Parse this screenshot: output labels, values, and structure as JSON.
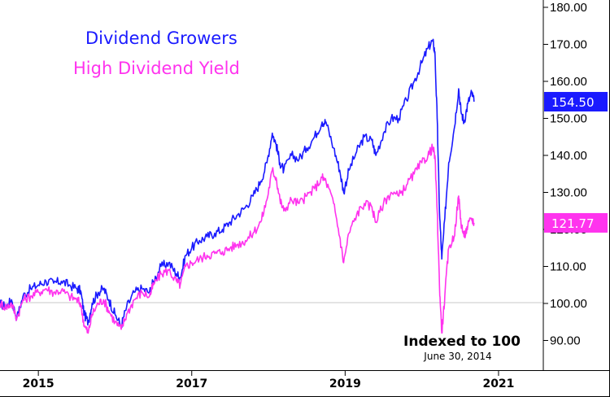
{
  "chart_data": {
    "type": "line",
    "title": "",
    "xlabel": "",
    "ylabel": "",
    "x_range": [
      2014.5,
      2020.72
    ],
    "ylim": [
      86,
      182
    ],
    "y_ticks": [
      "180.00",
      "170.00",
      "160.00",
      "150.00",
      "140.00",
      "130.00",
      "120.00",
      "110.00",
      "100.00",
      "90.00"
    ],
    "x_ticks": [
      {
        "label": "2015",
        "x": 2015
      },
      {
        "label": "2017",
        "x": 2017
      },
      {
        "label": "2019",
        "x": 2019
      },
      {
        "label": "2021",
        "x": 2021
      }
    ],
    "baseline": 100,
    "legend_position": "top-left",
    "series": [
      {
        "name": "Dividend Growers",
        "color": "#1a1aff",
        "last_value_label": "154.50",
        "points": [
          [
            2014.5,
            100
          ],
          [
            2014.58,
            99
          ],
          [
            2014.65,
            101
          ],
          [
            2014.72,
            96
          ],
          [
            2014.8,
            102
          ],
          [
            2014.9,
            104
          ],
          [
            2015.0,
            105
          ],
          [
            2015.1,
            106
          ],
          [
            2015.2,
            105.5
          ],
          [
            2015.3,
            106
          ],
          [
            2015.4,
            105
          ],
          [
            2015.5,
            104
          ],
          [
            2015.55,
            103.5
          ],
          [
            2015.6,
            97
          ],
          [
            2015.65,
            95
          ],
          [
            2015.7,
            100
          ],
          [
            2015.78,
            103
          ],
          [
            2015.85,
            104
          ],
          [
            2015.92,
            101
          ],
          [
            2016.0,
            97
          ],
          [
            2016.08,
            94
          ],
          [
            2016.15,
            99
          ],
          [
            2016.25,
            103
          ],
          [
            2016.35,
            104
          ],
          [
            2016.45,
            103
          ],
          [
            2016.5,
            106
          ],
          [
            2016.6,
            110
          ],
          [
            2016.7,
            111
          ],
          [
            2016.8,
            108
          ],
          [
            2016.85,
            107
          ],
          [
            2016.92,
            113
          ],
          [
            2017.0,
            115
          ],
          [
            2017.1,
            117
          ],
          [
            2017.2,
            118
          ],
          [
            2017.3,
            119
          ],
          [
            2017.4,
            120
          ],
          [
            2017.5,
            122
          ],
          [
            2017.6,
            124
          ],
          [
            2017.7,
            126
          ],
          [
            2017.8,
            129
          ],
          [
            2017.9,
            133
          ],
          [
            2017.98,
            138
          ],
          [
            2018.05,
            146
          ],
          [
            2018.1,
            143
          ],
          [
            2018.15,
            138
          ],
          [
            2018.2,
            136
          ],
          [
            2018.3,
            140
          ],
          [
            2018.4,
            139
          ],
          [
            2018.5,
            142
          ],
          [
            2018.6,
            145
          ],
          [
            2018.7,
            149
          ],
          [
            2018.75,
            149
          ],
          [
            2018.85,
            142
          ],
          [
            2018.93,
            136
          ],
          [
            2018.98,
            130
          ],
          [
            2019.05,
            136
          ],
          [
            2019.15,
            141
          ],
          [
            2019.25,
            145
          ],
          [
            2019.35,
            144
          ],
          [
            2019.4,
            140
          ],
          [
            2019.5,
            146
          ],
          [
            2019.6,
            150
          ],
          [
            2019.7,
            150
          ],
          [
            2019.8,
            155
          ],
          [
            2019.9,
            160
          ],
          [
            2020.0,
            165
          ],
          [
            2020.08,
            169
          ],
          [
            2020.14,
            171
          ],
          [
            2020.17,
            168
          ],
          [
            2020.2,
            150
          ],
          [
            2020.23,
            125
          ],
          [
            2020.26,
            112
          ],
          [
            2020.3,
            123
          ],
          [
            2020.35,
            138
          ],
          [
            2020.42,
            147
          ],
          [
            2020.48,
            158
          ],
          [
            2020.51,
            152
          ],
          [
            2020.55,
            149
          ],
          [
            2020.6,
            154
          ],
          [
            2020.65,
            157
          ],
          [
            2020.68,
            154.5
          ]
        ]
      },
      {
        "name": "High Dividend Yield",
        "color": "#ff33ee",
        "last_value_label": "121.77",
        "points": [
          [
            2014.5,
            100
          ],
          [
            2014.58,
            99
          ],
          [
            2014.65,
            100
          ],
          [
            2014.72,
            96
          ],
          [
            2014.8,
            101
          ],
          [
            2014.9,
            102
          ],
          [
            2015.0,
            103
          ],
          [
            2015.1,
            104
          ],
          [
            2015.2,
            103
          ],
          [
            2015.3,
            103.5
          ],
          [
            2015.4,
            102
          ],
          [
            2015.5,
            101
          ],
          [
            2015.55,
            100
          ],
          [
            2015.6,
            94
          ],
          [
            2015.65,
            92
          ],
          [
            2015.7,
            97
          ],
          [
            2015.78,
            100
          ],
          [
            2015.85,
            101
          ],
          [
            2015.92,
            98
          ],
          [
            2016.0,
            95
          ],
          [
            2016.08,
            93
          ],
          [
            2016.15,
            97
          ],
          [
            2016.25,
            101
          ],
          [
            2016.35,
            103
          ],
          [
            2016.45,
            102
          ],
          [
            2016.5,
            105
          ],
          [
            2016.6,
            108
          ],
          [
            2016.7,
            109
          ],
          [
            2016.8,
            106
          ],
          [
            2016.85,
            105
          ],
          [
            2016.92,
            110
          ],
          [
            2017.0,
            111
          ],
          [
            2017.1,
            112
          ],
          [
            2017.2,
            113
          ],
          [
            2017.3,
            113.5
          ],
          [
            2017.4,
            114
          ],
          [
            2017.5,
            115
          ],
          [
            2017.6,
            116
          ],
          [
            2017.7,
            117
          ],
          [
            2017.8,
            119
          ],
          [
            2017.9,
            122
          ],
          [
            2017.98,
            128
          ],
          [
            2018.05,
            136
          ],
          [
            2018.1,
            134
          ],
          [
            2018.15,
            128
          ],
          [
            2018.2,
            125
          ],
          [
            2018.3,
            128
          ],
          [
            2018.4,
            127
          ],
          [
            2018.5,
            129
          ],
          [
            2018.6,
            131
          ],
          [
            2018.7,
            134
          ],
          [
            2018.75,
            133
          ],
          [
            2018.85,
            127
          ],
          [
            2018.93,
            118
          ],
          [
            2018.98,
            111
          ],
          [
            2019.05,
            119
          ],
          [
            2019.15,
            124
          ],
          [
            2019.25,
            127
          ],
          [
            2019.35,
            126
          ],
          [
            2019.4,
            122
          ],
          [
            2019.5,
            127
          ],
          [
            2019.6,
            130
          ],
          [
            2019.7,
            129
          ],
          [
            2019.8,
            132
          ],
          [
            2019.9,
            135
          ],
          [
            2020.0,
            138
          ],
          [
            2020.08,
            140
          ],
          [
            2020.14,
            142
          ],
          [
            2020.17,
            140
          ],
          [
            2020.2,
            125
          ],
          [
            2020.23,
            105
          ],
          [
            2020.26,
            92
          ],
          [
            2020.3,
            102
          ],
          [
            2020.35,
            115
          ],
          [
            2020.42,
            118
          ],
          [
            2020.48,
            129
          ],
          [
            2020.51,
            122
          ],
          [
            2020.55,
            118
          ],
          [
            2020.6,
            121
          ],
          [
            2020.65,
            123
          ],
          [
            2020.68,
            121.77
          ]
        ]
      }
    ],
    "annotations": [
      {
        "text": "Indexed to 100"
      },
      {
        "text": "June 30, 2014"
      }
    ]
  }
}
